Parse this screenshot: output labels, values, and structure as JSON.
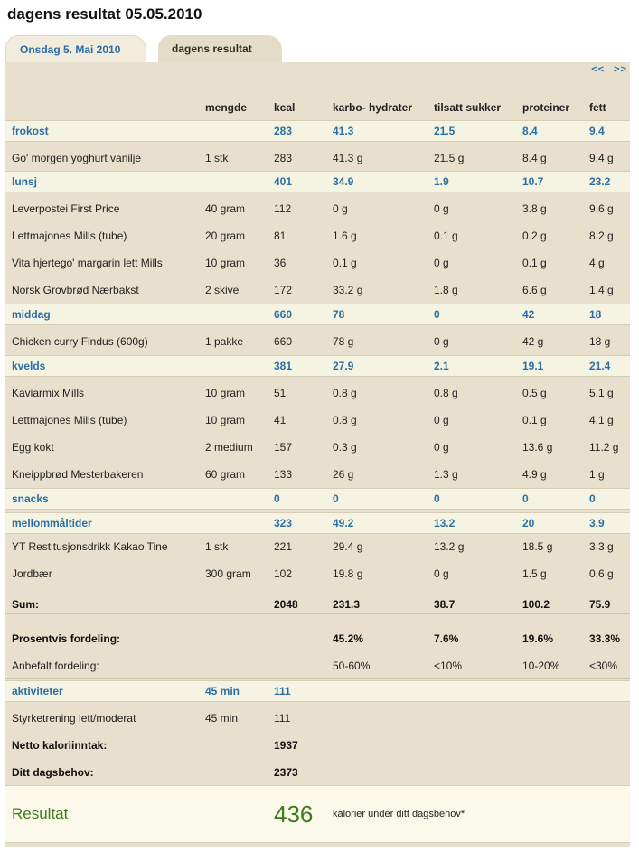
{
  "page_title": "dagens resultat 05.05.2010",
  "tabs": [
    {
      "label": "Onsdag 5. Mai 2010"
    },
    {
      "label": "dagens resultat"
    }
  ],
  "nav": {
    "prev": "<<",
    "next": ">>"
  },
  "columns": [
    "",
    "mengde",
    "kcal",
    "karbo- hydrater",
    "tilsatt sukker",
    "proteiner",
    "fett"
  ],
  "rows": [
    {
      "type": "section",
      "cells": [
        "frokost",
        "",
        "283",
        "41.3",
        "21.5",
        "8.4",
        "9.4"
      ]
    },
    {
      "type": "item",
      "cells": [
        "Go' morgen yoghurt vanilje",
        "1 stk",
        "283",
        "41.3 g",
        "21.5 g",
        "8.4 g",
        "9.4 g"
      ]
    },
    {
      "type": "section",
      "cells": [
        "lunsj",
        "",
        "401",
        "34.9",
        "1.9",
        "10.7",
        "23.2"
      ]
    },
    {
      "type": "item",
      "cells": [
        "Leverpostei First Price",
        "40 gram",
        "112",
        "0 g",
        "0 g",
        "3.8 g",
        "9.6 g"
      ]
    },
    {
      "type": "item",
      "cells": [
        "Lettmajones Mills (tube)",
        "20 gram",
        "81",
        "1.6 g",
        "0.1 g",
        "0.2 g",
        "8.2 g"
      ]
    },
    {
      "type": "item",
      "cells": [
        "Vita hjertego' margarin lett Mills",
        "10 gram",
        "36",
        "0.1 g",
        "0 g",
        "0.1 g",
        "4 g"
      ]
    },
    {
      "type": "item",
      "cells": [
        "Norsk Grovbrød Nærbakst",
        "2 skive",
        "172",
        "33.2 g",
        "1.8 g",
        "6.6 g",
        "1.4 g"
      ]
    },
    {
      "type": "section",
      "cells": [
        "middag",
        "",
        "660",
        "78",
        "0",
        "42",
        "18"
      ]
    },
    {
      "type": "item",
      "cells": [
        "Chicken curry Findus (600g)",
        "1 pakke",
        "660",
        "78 g",
        "0 g",
        "42 g",
        "18 g"
      ]
    },
    {
      "type": "section",
      "cells": [
        "kvelds",
        "",
        "381",
        "27.9",
        "2.1",
        "19.1",
        "21.4"
      ]
    },
    {
      "type": "item",
      "cells": [
        "Kaviarmix Mills",
        "10 gram",
        "51",
        "0.8 g",
        "0.8 g",
        "0.5 g",
        "5.1 g"
      ]
    },
    {
      "type": "item",
      "cells": [
        "Lettmajones Mills (tube)",
        "10 gram",
        "41",
        "0.8 g",
        "0 g",
        "0.1 g",
        "4.1 g"
      ]
    },
    {
      "type": "item",
      "cells": [
        "Egg kokt",
        "2 medium",
        "157",
        "0.3 g",
        "0 g",
        "13.6 g",
        "11.2 g"
      ]
    },
    {
      "type": "item",
      "cells": [
        "Kneippbrød Mesterbakeren",
        "60 gram",
        "133",
        "26 g",
        "1.3 g",
        "4.9 g",
        "1 g"
      ]
    },
    {
      "type": "section",
      "cells": [
        "snacks",
        "",
        "0",
        "0",
        "0",
        "0",
        "0"
      ]
    },
    {
      "type": "section",
      "cells": [
        "mellommåltider",
        "",
        "323",
        "49.2",
        "13.2",
        "20",
        "3.9"
      ]
    },
    {
      "type": "item",
      "cells": [
        "YT Restitusjonsdrikk Kakao Tine",
        "1 stk",
        "221",
        "29.4 g",
        "13.2 g",
        "18.5 g",
        "3.3 g"
      ]
    },
    {
      "type": "item",
      "cells": [
        "Jordbær",
        "300 gram",
        "102",
        "19.8 g",
        "0 g",
        "1.5 g",
        "0.6 g"
      ]
    },
    {
      "type": "bold",
      "cells": [
        "Sum:",
        "",
        "2048",
        "231.3",
        "38.7",
        "100.2",
        "75.9"
      ]
    },
    {
      "type": "bold",
      "cells": [
        "Prosentvis fordeling:",
        "",
        "",
        "45.2%",
        "7.6%",
        "19.6%",
        "33.3%"
      ]
    },
    {
      "type": "item",
      "cells": [
        "Anbefalt fordeling:",
        "",
        "",
        "50-60%",
        "<10%",
        "10-20%",
        "<30%"
      ]
    },
    {
      "type": "section",
      "cells": [
        "aktiviteter",
        "45 min",
        "111",
        "",
        "",
        "",
        ""
      ]
    },
    {
      "type": "item",
      "cells": [
        "Styrketrening lett/moderat",
        "45 min",
        "111",
        "",
        "",
        "",
        ""
      ]
    },
    {
      "type": "bold",
      "cells": [
        "Netto kaloriinntak:",
        "",
        "1937",
        "",
        "",
        "",
        ""
      ]
    },
    {
      "type": "bold",
      "cells": [
        "Ditt dagsbehov:",
        "",
        "2373",
        "",
        "",
        "",
        ""
      ]
    }
  ],
  "result": {
    "label": "Resultat",
    "value": "436",
    "text": "kalorier under ditt dagsbehov*"
  }
}
